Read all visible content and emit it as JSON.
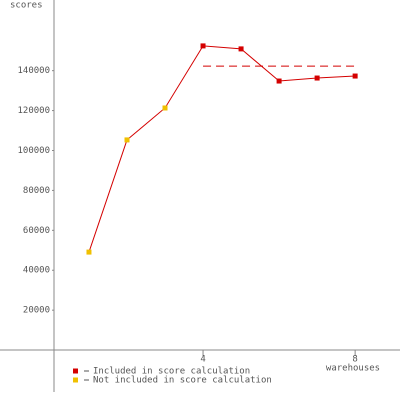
{
  "chart_data": {
    "type": "line",
    "x_label": "warehouses",
    "y_label": "scores",
    "x": [
      1,
      2,
      3,
      4,
      5,
      6,
      7,
      8
    ],
    "series": [
      {
        "name": "Included in score calculation",
        "color": "#d40000",
        "values": [
          null,
          null,
          null,
          152400,
          150900,
          134800,
          136300,
          137300
        ]
      },
      {
        "name": "Not included in score calculation",
        "color": "#f0c000",
        "values": [
          49100,
          105300,
          121300,
          null,
          null,
          null,
          null,
          null
        ]
      }
    ],
    "line_color": "#d40000",
    "score_line": {
      "value": 142300,
      "x": [
        4,
        8
      ],
      "color": "#d40000"
    },
    "xlim": [
      -1.34,
      9.18
    ],
    "xticks": [
      4,
      8
    ],
    "ylim": [
      -20000,
      175400
    ],
    "yticks": [
      20000,
      40000,
      60000,
      80000,
      100000,
      120000,
      140000
    ]
  }
}
